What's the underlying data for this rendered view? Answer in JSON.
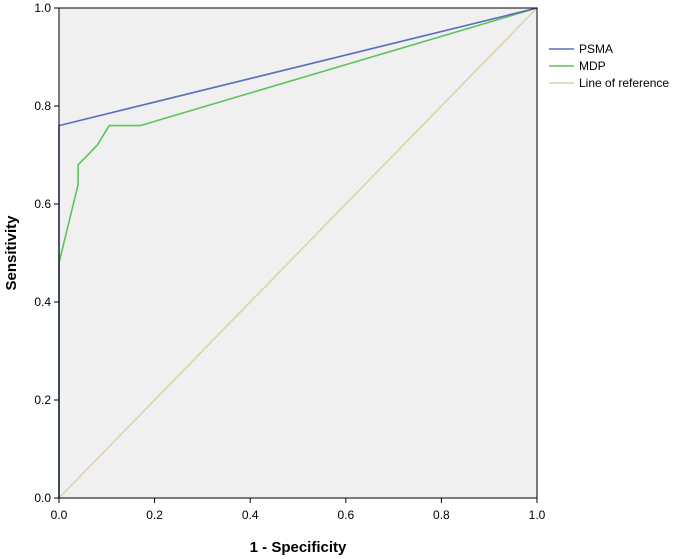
{
  "chart_data": {
    "type": "line",
    "title": "",
    "xlabel": "1 - Specificity",
    "ylabel": "Sensitivity",
    "xlim": [
      0,
      1
    ],
    "ylim": [
      0,
      1
    ],
    "xticks": [
      "0.0",
      "0.2",
      "0.4",
      "0.6",
      "0.8",
      "1.0"
    ],
    "yticks": [
      "0.0",
      "0.2",
      "0.4",
      "0.6",
      "0.8",
      "1.0"
    ],
    "grid": false,
    "legend_position": "right",
    "plot_background": "#f0f0f0",
    "series": [
      {
        "name": "PSMA",
        "color": "#5a6fbd",
        "points": [
          [
            0,
            0
          ],
          [
            0,
            0.76
          ],
          [
            1,
            1
          ]
        ]
      },
      {
        "name": "MDP",
        "color": "#5cc45c",
        "points": [
          [
            0,
            0
          ],
          [
            0,
            0.48
          ],
          [
            0.04,
            0.64
          ],
          [
            0.04,
            0.68
          ],
          [
            0.08,
            0.72
          ],
          [
            0.105,
            0.76
          ],
          [
            0.17,
            0.76
          ],
          [
            1,
            1
          ]
        ]
      },
      {
        "name": "Line of reference",
        "color": "#ddd3a8",
        "points": [
          [
            0,
            0
          ],
          [
            1,
            1
          ]
        ]
      }
    ]
  }
}
